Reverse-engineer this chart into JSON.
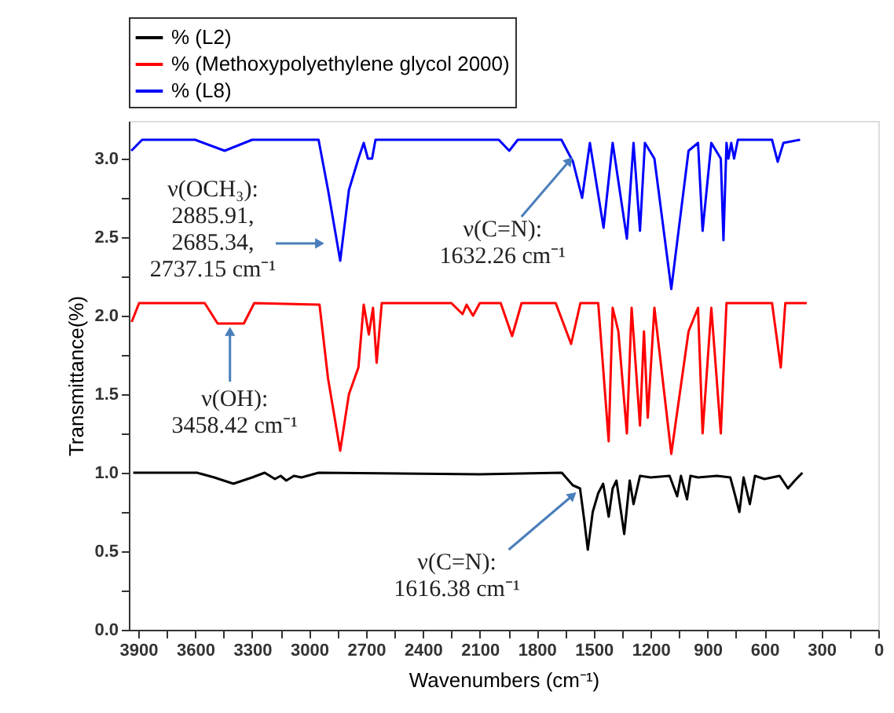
{
  "chart_data": {
    "type": "line",
    "xlabel": "Wavenumbers (cm⁻¹)",
    "ylabel": "Transmittance(%)",
    "xlim": [
      3950,
      0
    ],
    "ylim": [
      0,
      3.24
    ],
    "xticks": [
      3900,
      {
        "value": 3750,
        "label": null
      },
      3600,
      {
        "value": 3450,
        "label": null
      },
      3300,
      {
        "value": 3150,
        "label": null
      },
      3000,
      {
        "value": 2850,
        "label": null
      },
      2700,
      {
        "value": 2550,
        "label": null
      },
      2400,
      {
        "value": 2250,
        "label": null
      },
      2100,
      {
        "value": 1950,
        "label": null
      },
      1800,
      {
        "value": 1650,
        "label": null
      },
      1500,
      {
        "value": 1350,
        "label": null
      },
      1200,
      {
        "value": 1050,
        "label": null
      },
      900,
      {
        "value": 750,
        "label": null
      },
      600,
      {
        "value": 450,
        "label": null
      },
      300,
      {
        "value": 150,
        "label": null
      },
      0
    ],
    "yticks": [
      {
        "value": 0,
        "label": "0.0"
      },
      {
        "value": 0.25,
        "label": null
      },
      0.5,
      {
        "value": 0.75,
        "label": null
      },
      {
        "value": 1,
        "label": "1.0"
      },
      {
        "value": 1.25,
        "label": null
      },
      1.5,
      {
        "value": 1.75,
        "label": null
      },
      {
        "value": 2,
        "label": "2.0"
      },
      {
        "value": 2.25,
        "label": null
      },
      2.5,
      {
        "value": 2.75,
        "label": null
      },
      {
        "value": 3,
        "label": "3.0"
      }
    ],
    "grid": false,
    "legend": "top left",
    "marker": "none",
    "line_style": "solid",
    "series": [
      {
        "name": "% (L2)",
        "color": "#000000",
        "x": [
          3927,
          3591,
          3500,
          3399,
          3300,
          3234,
          3180,
          3150,
          3120,
          3080,
          3040,
          2950,
          2100,
          1668,
          1610,
          1572,
          1550,
          1531,
          1505,
          1476,
          1450,
          1421,
          1400,
          1380,
          1339,
          1310,
          1290,
          1256,
          1200,
          1100,
          1060,
          1040,
          1008,
          990,
          950,
          850,
          780,
          760,
          732,
          710,
          677,
          650,
          600,
          520,
          476,
          440,
          400
        ],
        "values": [
          1.0,
          1.0,
          0.97,
          0.93,
          0.97,
          1.0,
          0.96,
          0.98,
          0.95,
          0.98,
          0.97,
          1.0,
          0.99,
          1.0,
          0.92,
          0.9,
          0.7,
          0.51,
          0.75,
          0.87,
          0.93,
          0.72,
          0.9,
          0.95,
          0.61,
          0.95,
          0.8,
          0.98,
          0.97,
          0.98,
          0.85,
          0.98,
          0.83,
          0.98,
          0.97,
          0.98,
          0.97,
          0.88,
          0.75,
          0.97,
          0.8,
          0.98,
          0.96,
          0.98,
          0.9,
          0.95,
          1.0
        ]
      },
      {
        "name": "% (Methoxypolyethylene glycol 2000)",
        "color": "#ff0000",
        "x": [
          3935,
          3896,
          3550,
          3482,
          3344,
          3289,
          2945,
          2900,
          2836,
          2790,
          2740,
          2712,
          2685,
          2663,
          2644,
          2617,
          2250,
          2191,
          2170,
          2136,
          2100,
          1990,
          1930,
          1880,
          1700,
          1619,
          1570,
          1476,
          1421,
          1400,
          1370,
          1325,
          1300,
          1256,
          1235,
          1215,
          1180,
          1091,
          1000,
          950,
          926,
          880,
          830,
          800,
          560,
          514,
          490,
          377
        ],
        "values": [
          1.96,
          2.08,
          2.08,
          1.95,
          1.95,
          2.08,
          2.07,
          1.6,
          1.14,
          1.5,
          1.67,
          2.07,
          1.88,
          2.05,
          1.7,
          2.08,
          2.08,
          2.01,
          2.07,
          2.0,
          2.08,
          2.08,
          1.87,
          2.08,
          2.08,
          1.82,
          2.08,
          2.08,
          1.2,
          2.05,
          1.9,
          1.25,
          2.05,
          1.3,
          1.9,
          1.35,
          2.05,
          1.12,
          1.9,
          2.05,
          1.25,
          2.05,
          1.25,
          2.08,
          2.08,
          1.67,
          2.08,
          2.08
        ]
      },
      {
        "name": "% (L8)",
        "color": "#0000ff",
        "x": [
          3937,
          3880,
          3600,
          3445,
          3300,
          2950,
          2900,
          2836,
          2790,
          2740,
          2712,
          2690,
          2668,
          2650,
          2000,
          1945,
          1900,
          1670,
          1609,
          1561,
          1520,
          1448,
          1400,
          1325,
          1290,
          1256,
          1230,
          1180,
          1091,
          1000,
          950,
          926,
          880,
          830,
          816,
          800,
          790,
          775,
          760,
          740,
          560,
          530,
          500,
          412
        ],
        "values": [
          3.05,
          3.12,
          3.12,
          3.05,
          3.12,
          3.12,
          2.8,
          2.35,
          2.8,
          3.0,
          3.1,
          3.0,
          3.0,
          3.12,
          3.12,
          3.05,
          3.12,
          3.12,
          2.98,
          2.75,
          3.1,
          2.56,
          3.1,
          2.49,
          3.1,
          2.54,
          3.1,
          3.0,
          2.17,
          3.05,
          3.1,
          2.54,
          3.1,
          3.0,
          2.48,
          3.1,
          3.0,
          3.1,
          3.0,
          3.12,
          3.12,
          2.98,
          3.1,
          3.12
        ]
      }
    ],
    "annotations": [
      {
        "text": "ν(OCH₃):\n2885.91,\n2685.34,\n2737.15 cm⁻¹",
        "x": 2885.91,
        "y": 2.35
      },
      {
        "text": "ν(C=N):\n1632.26 cm⁻¹",
        "x": 1632.26,
        "y": 2.98
      },
      {
        "text": "ν(OH):\n3458.42 cm⁻¹",
        "x": 3458.42,
        "y": 1.95
      },
      {
        "text": "ν(C=N):\n1616.38 cm⁻¹",
        "x": 1616.38,
        "y": 0.85
      }
    ]
  }
}
